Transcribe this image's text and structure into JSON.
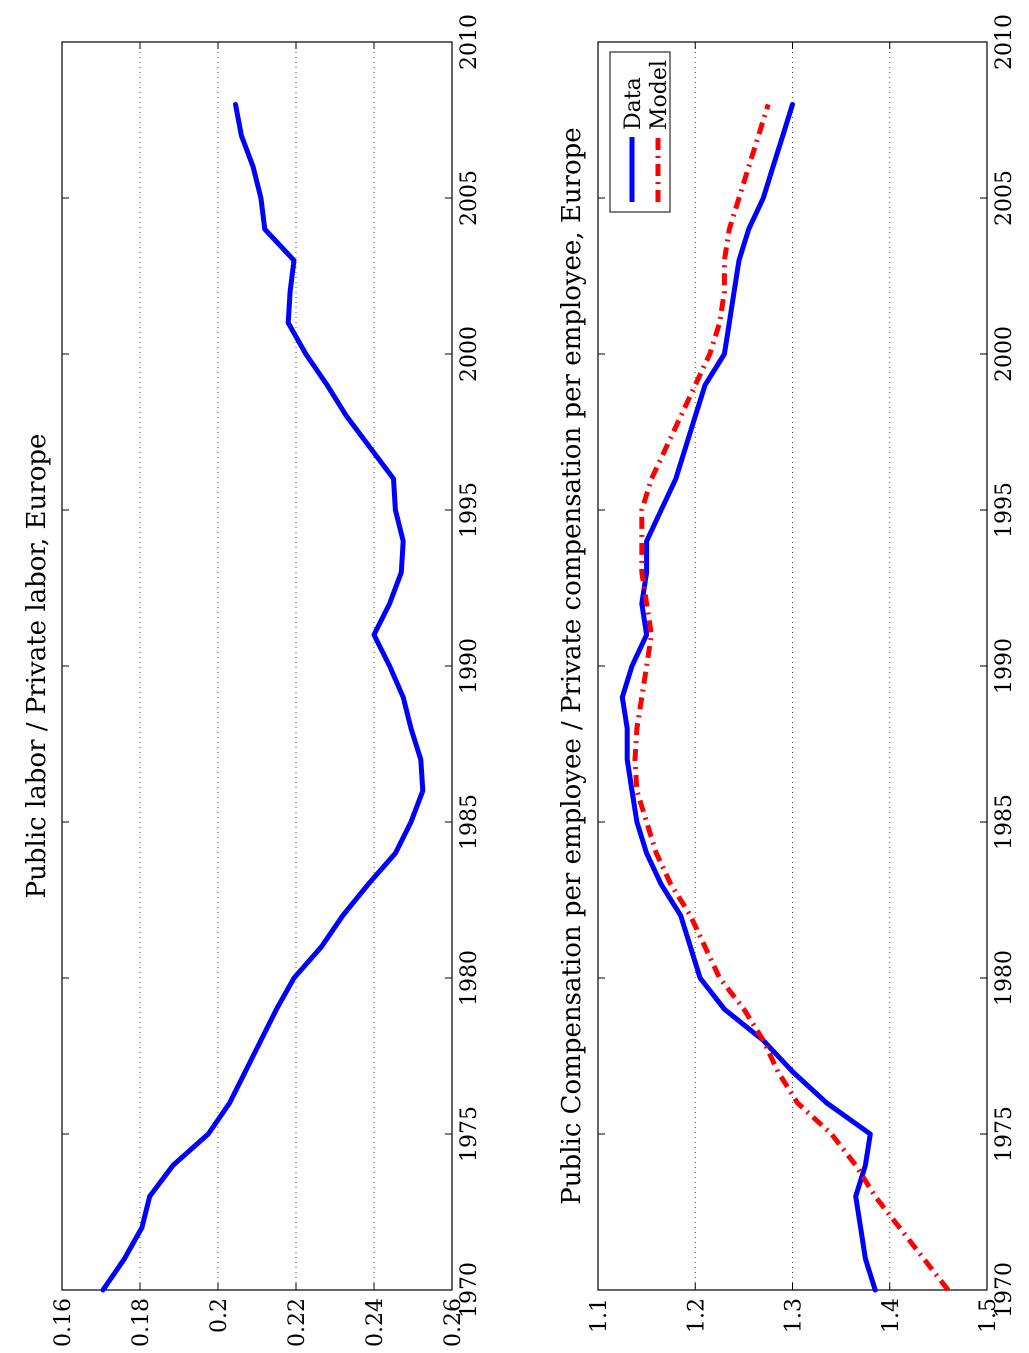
{
  "chart_data": [
    {
      "type": "line",
      "title": "Public labor / Private labor, Europe",
      "xlabel": "",
      "ylabel": "",
      "xlim": [
        1970,
        2010
      ],
      "ylim": [
        0.16,
        0.26
      ],
      "x_ticks": [
        "1970",
        "1975",
        "1980",
        "1985",
        "1990",
        "1995",
        "2000",
        "2005",
        "2010"
      ],
      "y_ticks": [
        "0.16",
        "0.18",
        "0.2",
        "0.22",
        "0.24",
        "0.26"
      ],
      "grid": "dotted horizontal",
      "series": [
        {
          "color": "#0000ff",
          "style": "solid",
          "x": [
            1970,
            1971,
            1972,
            1973,
            1974,
            1975,
            1976,
            1977,
            1978,
            1979,
            1980,
            1981,
            1982,
            1983,
            1984,
            1985,
            1986,
            1987,
            1988,
            1989,
            1990,
            1991,
            1992,
            1993,
            1994,
            1995,
            1996,
            1997,
            1998,
            1999,
            2000,
            2001,
            2002,
            2003,
            2004,
            2005,
            2006,
            2007,
            2008
          ],
          "values": [
            0.1705,
            0.176,
            0.1805,
            0.1825,
            0.1885,
            0.1975,
            0.203,
            0.207,
            0.211,
            0.215,
            0.2195,
            0.2265,
            0.232,
            0.2385,
            0.2455,
            0.2495,
            0.2525,
            0.252,
            0.2495,
            0.2475,
            0.244,
            0.24,
            0.244,
            0.247,
            0.2475,
            0.2455,
            0.245,
            0.239,
            0.233,
            0.228,
            0.2225,
            0.218,
            0.2185,
            0.2195,
            0.212,
            0.211,
            0.209,
            0.206,
            0.2045
          ]
        }
      ]
    },
    {
      "type": "line",
      "title": "Public Compensation per employee / Private compensation per employee, Europe",
      "xlabel": "",
      "ylabel": "",
      "xlim": [
        1970,
        2010
      ],
      "ylim": [
        1.1,
        1.5
      ],
      "x_ticks": [
        "1970",
        "1975",
        "1980",
        "1985",
        "1990",
        "1995",
        "2000",
        "2005",
        "2010"
      ],
      "y_ticks": [
        "1.1",
        "1.2",
        "1.3",
        "1.4",
        "1.5"
      ],
      "grid": "dotted horizontal",
      "legend_position": "top-right",
      "series": [
        {
          "name": "Data",
          "color": "#0000ff",
          "style": "solid",
          "x": [
            1970,
            1970.5,
            1971,
            1972,
            1973,
            1974,
            1975,
            1976,
            1977,
            1978,
            1979,
            1980,
            1981,
            1982,
            1983,
            1984,
            1985,
            1986,
            1987,
            1988,
            1989,
            1990,
            1991,
            1992,
            1993,
            1994,
            1995,
            1996,
            1997,
            1998,
            1999,
            2000,
            2001,
            2002,
            2003,
            2004,
            2005,
            2006,
            2007,
            2008
          ],
          "values": [
            1.385,
            1.38,
            1.375,
            1.37,
            1.365,
            1.375,
            1.38,
            1.335,
            1.3,
            1.27,
            1.23,
            1.205,
            1.195,
            1.185,
            1.165,
            1.15,
            1.14,
            1.135,
            1.13,
            1.13,
            1.125,
            1.135,
            1.15,
            1.145,
            1.15,
            1.15,
            1.165,
            1.18,
            1.19,
            1.2,
            1.21,
            1.23,
            1.235,
            1.24,
            1.245,
            1.255,
            1.27,
            1.28,
            1.29,
            1.3
          ]
        },
        {
          "name": "Model",
          "color": "#ff0000",
          "style": "dash-dot",
          "x": [
            1970,
            1971,
            1972,
            1973,
            1974,
            1975,
            1976,
            1977,
            1978,
            1979,
            1980,
            1981,
            1982,
            1983,
            1984,
            1985,
            1986,
            1987,
            1988,
            1989,
            1990,
            1991,
            1992,
            1993,
            1994,
            1995,
            1996,
            1997,
            1998,
            1999,
            2000,
            2001,
            2002,
            2003,
            2004,
            2005,
            2006,
            2007,
            2008
          ],
          "values": [
            1.46,
            1.435,
            1.41,
            1.385,
            1.365,
            1.34,
            1.305,
            1.285,
            1.27,
            1.25,
            1.225,
            1.21,
            1.195,
            1.175,
            1.16,
            1.15,
            1.14,
            1.138,
            1.14,
            1.145,
            1.15,
            1.155,
            1.15,
            1.145,
            1.145,
            1.145,
            1.155,
            1.17,
            1.185,
            1.2,
            1.215,
            1.225,
            1.23,
            1.23,
            1.235,
            1.245,
            1.255,
            1.265,
            1.275
          ]
        }
      ]
    }
  ]
}
